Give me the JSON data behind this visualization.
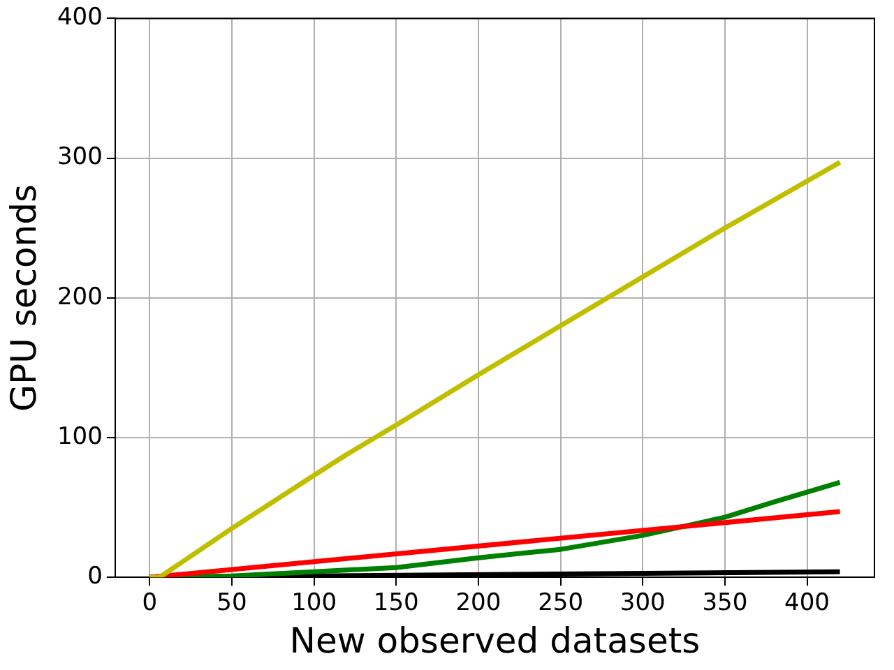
{
  "chart_data": {
    "type": "line",
    "xlabel": "New observed datasets",
    "ylabel": "GPU seconds",
    "xlim": [
      -21,
      441
    ],
    "xticks": [
      0,
      50,
      100,
      150,
      200,
      250,
      300,
      350,
      400
    ],
    "ylim": [
      0,
      400
    ],
    "yticks": [
      0,
      100,
      200,
      300,
      400
    ],
    "grid": true,
    "legend": false,
    "marker": "none",
    "line_style": "solid",
    "series": [
      {
        "color": "#bfbf00",
        "x": [
          0,
          6,
          50,
          100,
          120,
          150,
          200,
          250,
          300,
          350,
          420
        ],
        "values": [
          0,
          0,
          35,
          73,
          88,
          109,
          145,
          180,
          215,
          250,
          297
        ]
      },
      {
        "color": "#ff0000",
        "x": [
          0,
          420
        ],
        "values": [
          0,
          47
        ]
      },
      {
        "color": "#008000",
        "x": [
          0,
          50,
          100,
          150,
          200,
          250,
          300,
          350,
          380,
          420
        ],
        "values": [
          0,
          1,
          4,
          7,
          14,
          20,
          30,
          43,
          54,
          68
        ]
      },
      {
        "color": "#000000",
        "x": [
          0,
          420
        ],
        "values": [
          0,
          4
        ]
      }
    ]
  }
}
